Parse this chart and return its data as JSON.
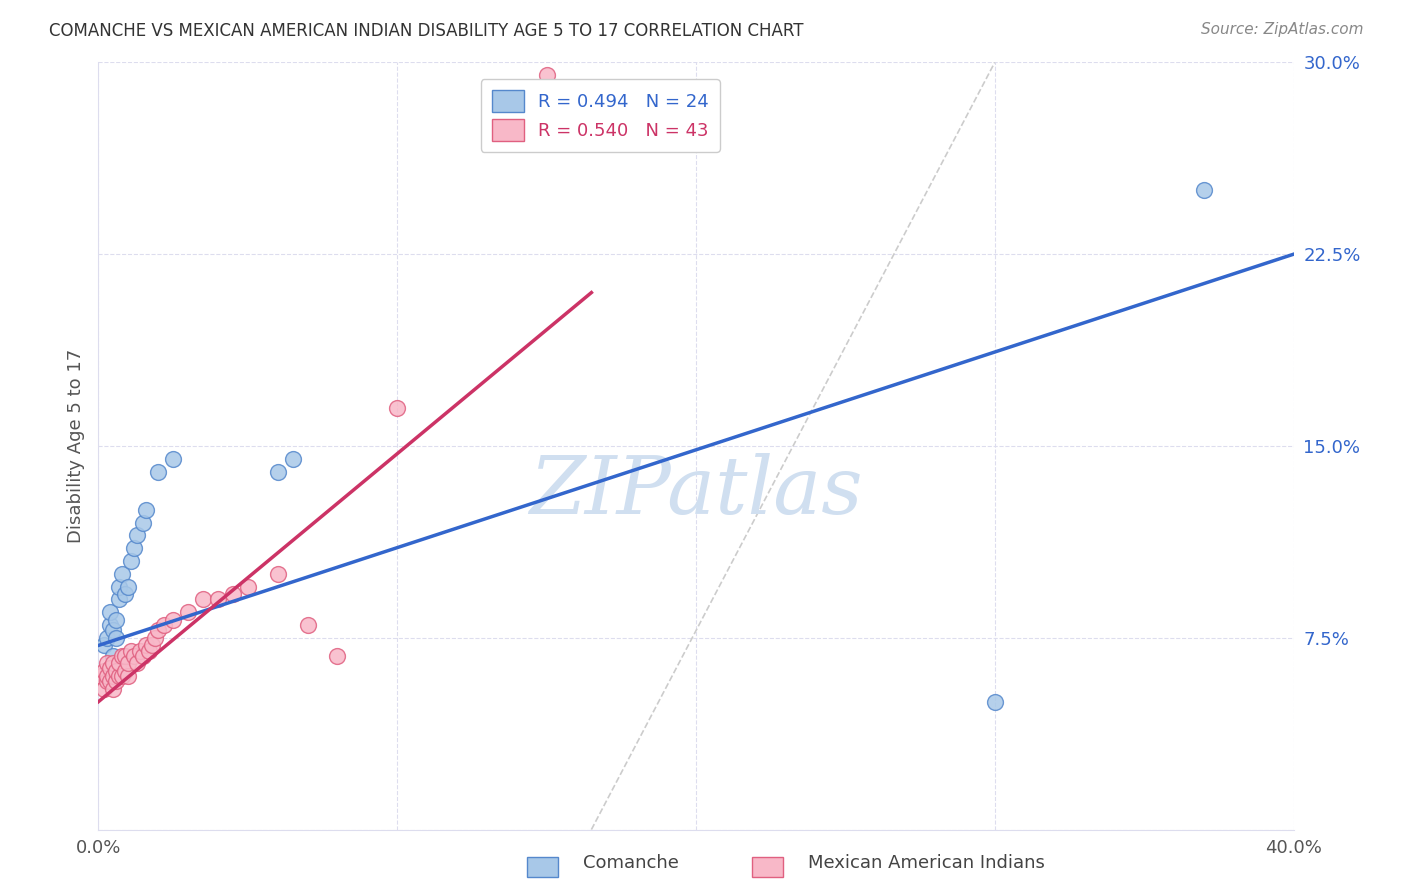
{
  "title": "COMANCHE VS MEXICAN AMERICAN INDIAN DISABILITY AGE 5 TO 17 CORRELATION CHART",
  "source": "Source: ZipAtlas.com",
  "ylabel": "Disability Age 5 to 17",
  "x_min": 0.0,
  "x_max": 0.4,
  "y_min": 0.0,
  "y_max": 0.3,
  "x_ticks": [
    0.0,
    0.1,
    0.2,
    0.3,
    0.4
  ],
  "x_tick_labels": [
    "0.0%",
    "",
    "",
    "",
    "40.0%"
  ],
  "y_ticks": [
    0.0,
    0.075,
    0.15,
    0.225,
    0.3
  ],
  "y_tick_labels": [
    "",
    "7.5%",
    "15.0%",
    "22.5%",
    "30.0%"
  ],
  "comanche_color": "#a8c8e8",
  "comanche_edge_color": "#5588cc",
  "mexican_color": "#f8b8c8",
  "mexican_edge_color": "#e06080",
  "comanche_line_color": "#3366cc",
  "mexican_line_color": "#cc3366",
  "ref_line_color": "#cccccc",
  "background_color": "#ffffff",
  "grid_color": "#ddddee",
  "watermark_text": "ZIPatlas",
  "watermark_color": "#d0dff0",
  "legend_blue_label": "R = 0.494   N = 24",
  "legend_pink_label": "R = 0.540   N = 43",
  "comanche_x": [
    0.002,
    0.003,
    0.004,
    0.004,
    0.005,
    0.005,
    0.006,
    0.006,
    0.007,
    0.007,
    0.008,
    0.009,
    0.01,
    0.011,
    0.012,
    0.013,
    0.015,
    0.016,
    0.02,
    0.025,
    0.06,
    0.065,
    0.3,
    0.37
  ],
  "comanche_y": [
    0.072,
    0.075,
    0.08,
    0.085,
    0.068,
    0.078,
    0.075,
    0.082,
    0.09,
    0.095,
    0.1,
    0.092,
    0.095,
    0.105,
    0.11,
    0.115,
    0.12,
    0.125,
    0.14,
    0.145,
    0.14,
    0.145,
    0.05,
    0.25
  ],
  "mexican_x": [
    0.001,
    0.002,
    0.002,
    0.003,
    0.003,
    0.003,
    0.004,
    0.004,
    0.005,
    0.005,
    0.005,
    0.006,
    0.006,
    0.007,
    0.007,
    0.008,
    0.008,
    0.009,
    0.009,
    0.01,
    0.01,
    0.011,
    0.012,
    0.013,
    0.014,
    0.015,
    0.016,
    0.017,
    0.018,
    0.019,
    0.02,
    0.022,
    0.025,
    0.03,
    0.035,
    0.04,
    0.045,
    0.05,
    0.06,
    0.07,
    0.08,
    0.1,
    0.15
  ],
  "mexican_y": [
    0.06,
    0.055,
    0.062,
    0.058,
    0.06,
    0.065,
    0.058,
    0.063,
    0.055,
    0.06,
    0.065,
    0.058,
    0.062,
    0.06,
    0.065,
    0.06,
    0.068,
    0.062,
    0.068,
    0.06,
    0.065,
    0.07,
    0.068,
    0.065,
    0.07,
    0.068,
    0.072,
    0.07,
    0.072,
    0.075,
    0.078,
    0.08,
    0.082,
    0.085,
    0.09,
    0.09,
    0.092,
    0.095,
    0.1,
    0.08,
    0.068,
    0.165,
    0.295
  ],
  "blue_line_x0": 0.0,
  "blue_line_y0": 0.072,
  "blue_line_x1": 0.4,
  "blue_line_y1": 0.225,
  "pink_line_x0": 0.0,
  "pink_line_y0": 0.05,
  "pink_line_x1": 0.165,
  "pink_line_y1": 0.21,
  "ref_line_x0": 0.165,
  "ref_line_y0": 0.0,
  "ref_line_x1": 0.3,
  "ref_line_y1": 0.3
}
